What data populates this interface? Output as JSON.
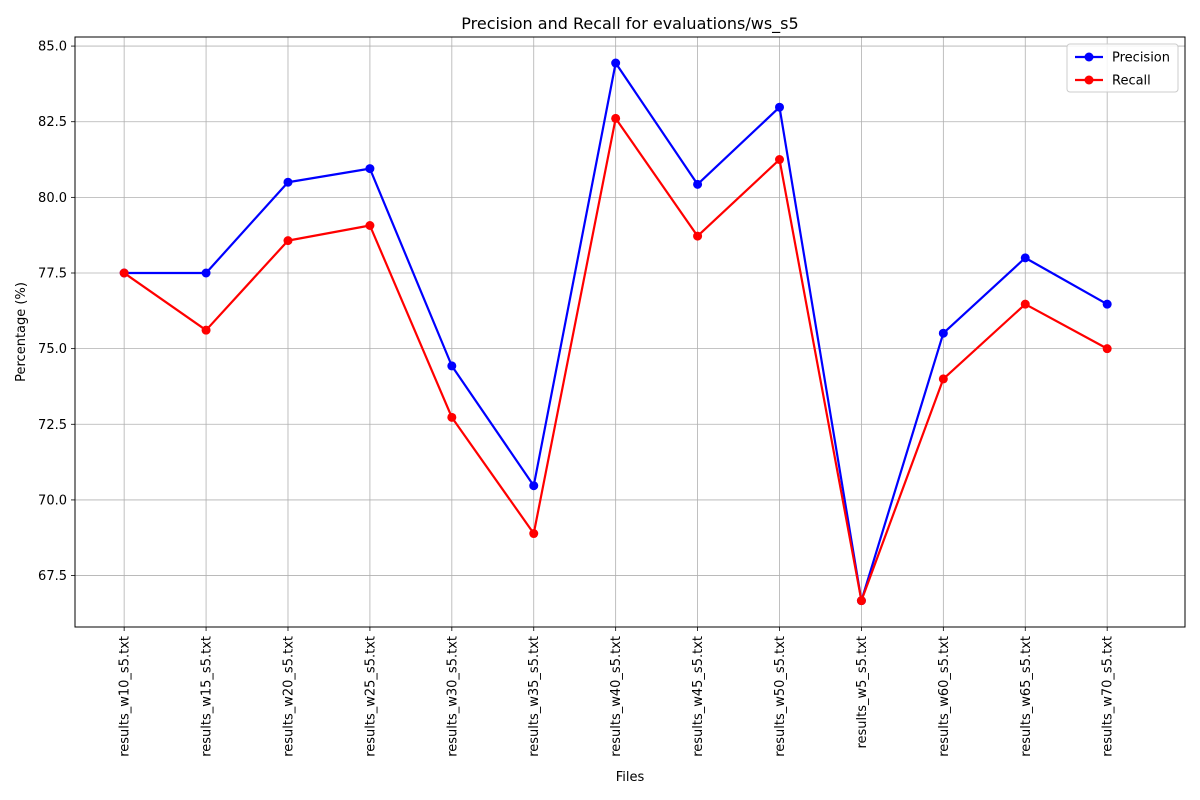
{
  "chart_data": {
    "type": "line",
    "title": "Precision and Recall for evaluations/ws_s5",
    "xlabel": "Files",
    "ylabel": "Percentage (%)",
    "categories": [
      "results_w10_s5.txt",
      "results_w15_s5.txt",
      "results_w20_s5.txt",
      "results_w25_s5.txt",
      "results_w30_s5.txt",
      "results_w35_s5.txt",
      "results_w40_s5.txt",
      "results_w45_s5.txt",
      "results_w50_s5.txt",
      "results_w5_s5.txt",
      "results_w60_s5.txt",
      "results_w65_s5.txt",
      "results_w70_s5.txt"
    ],
    "ylim": [
      65.8,
      85.3
    ],
    "yticks": [
      67.5,
      70.0,
      72.5,
      75.0,
      77.5,
      80.0,
      82.5,
      85.0
    ],
    "ytick_labels": [
      "67.5",
      "70.0",
      "72.5",
      "75.0",
      "77.5",
      "80.0",
      "82.5",
      "85.0"
    ],
    "grid": true,
    "legend_position": "top-right",
    "series": [
      {
        "name": "Precision",
        "color": "#0000ff",
        "marker": "circle",
        "values": [
          77.5,
          77.5,
          80.5,
          80.95,
          74.43,
          70.47,
          84.44,
          80.43,
          82.98,
          66.67,
          75.51,
          78.0,
          76.47
        ]
      },
      {
        "name": "Recall",
        "color": "#ff0000",
        "marker": "circle",
        "values": [
          77.5,
          75.61,
          78.57,
          79.07,
          72.73,
          68.89,
          82.61,
          78.72,
          81.25,
          66.67,
          74.0,
          76.47,
          75.0
        ]
      }
    ]
  }
}
